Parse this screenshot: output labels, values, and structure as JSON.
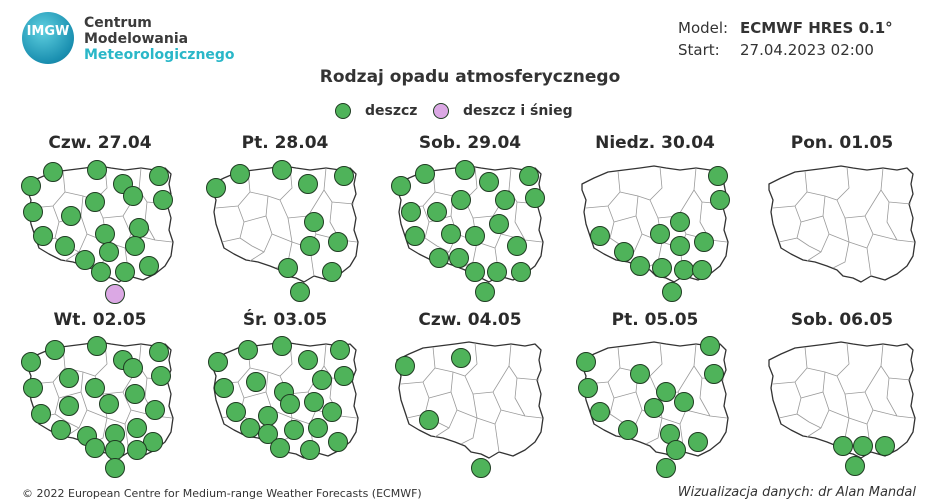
{
  "logo": {
    "badge": "IMGW",
    "line1": "Centrum",
    "line2": "Modelowania",
    "line3": "Meteorologicznego"
  },
  "meta": {
    "model_label": "Model:",
    "model_value": "ECMWF HRES 0.1°",
    "start_label": "Start:",
    "start_value": "27.04.2023 02:00"
  },
  "title": "Rodzaj opadu atmosferycznego",
  "legend": [
    {
      "label": "deszcz",
      "color": "#4fb35a"
    },
    {
      "label": "deszcz i śnieg",
      "color": "#dba8e4"
    }
  ],
  "days": [
    {
      "label": "Czw. 27.04",
      "stations": [
        "rain",
        "rain",
        "rain",
        "rain",
        "rain",
        "rain",
        "rain",
        "rain",
        "rain",
        "rain",
        "rain",
        "rain",
        "rain",
        "rain",
        "rain",
        "rain",
        "rain",
        "rain",
        "rain",
        "rain",
        "mix"
      ]
    },
    {
      "label": "Pt. 28.04",
      "stations": [
        "rain",
        "rain",
        "rain",
        "rain",
        "rain",
        "rain",
        "rain",
        "rain",
        "rain",
        "rain",
        "rain"
      ]
    },
    {
      "label": "Sob. 29.04",
      "stations": [
        "rain",
        "rain",
        "rain",
        "rain",
        "rain",
        "rain",
        "rain",
        "rain",
        "rain",
        "rain",
        "rain",
        "rain",
        "rain",
        "rain",
        "rain",
        "rain",
        "rain",
        "rain",
        "rain",
        "rain",
        "rain"
      ]
    },
    {
      "label": "Niedz. 30.04",
      "stations": [
        "rain",
        "rain",
        "rain",
        "rain",
        "rain",
        "rain",
        "rain",
        "rain",
        "rain",
        "rain",
        "rain",
        "rain",
        "rain",
        "rain",
        "rain"
      ]
    },
    {
      "label": "Pon. 01.05",
      "stations": []
    },
    {
      "label": "Wt. 02.05",
      "stations": [
        "rain",
        "rain",
        "rain",
        "rain",
        "rain",
        "rain",
        "rain",
        "rain",
        "rain",
        "rain",
        "rain",
        "rain",
        "rain",
        "rain",
        "rain",
        "rain",
        "rain",
        "rain",
        "rain",
        "rain",
        "rain",
        "rain",
        "rain",
        "rain"
      ]
    },
    {
      "label": "Śr. 03.05",
      "stations": [
        "rain",
        "rain",
        "rain",
        "rain",
        "rain",
        "rain",
        "rain",
        "rain",
        "rain",
        "rain",
        "rain",
        "rain",
        "rain",
        "rain",
        "rain",
        "rain",
        "rain",
        "rain",
        "rain",
        "rain",
        "rain",
        "rain"
      ]
    },
    {
      "label": "Czw. 04.05",
      "stations": [
        "rain",
        "rain",
        "rain",
        "rain"
      ]
    },
    {
      "label": "Pt. 05.05",
      "stations": [
        "rain",
        "rain",
        "rain",
        "rain",
        "rain",
        "rain",
        "rain",
        "rain",
        "rain",
        "rain",
        "rain",
        "rain",
        "rain",
        "rain"
      ]
    },
    {
      "label": "Sob. 06.05",
      "stations": [
        "rain",
        "rain",
        "rain",
        "rain"
      ]
    }
  ],
  "footer": {
    "copyright": "© 2022 European Centre for Medium-range Weather Forecasts (ECMWF)",
    "credit": "Wizualizacja danych: dr Alan Mandal"
  }
}
